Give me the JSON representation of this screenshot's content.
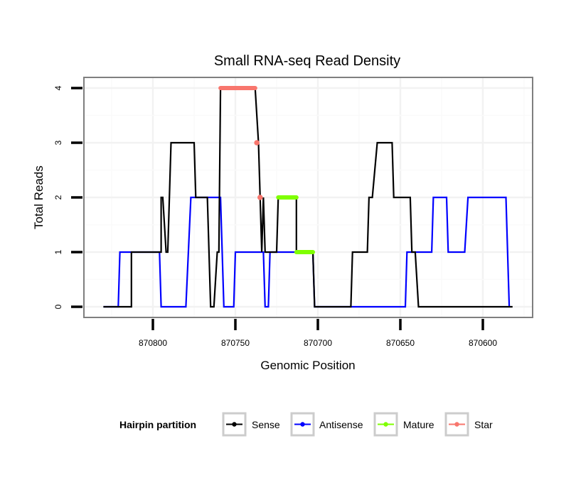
{
  "chart_data": {
    "type": "line",
    "title": "Small RNA-seq Read Density",
    "xlabel": "Genomic Position",
    "ylabel": "Total Reads",
    "x_reversed": true,
    "xlim": [
      870830,
      870560
    ],
    "ylim": [
      -0.2,
      4.2
    ],
    "x_ticks": [
      870800,
      870750,
      870700,
      870650,
      870600
    ],
    "x_tick_labels": [
      "870800",
      "870750",
      "870700",
      "870650",
      "870600"
    ],
    "y_ticks": [
      0,
      1,
      2,
      3,
      4
    ],
    "y_tick_labels": [
      "0",
      "1",
      "2",
      "3",
      "4"
    ],
    "grid": true,
    "legend": {
      "title": "Hairpin partition",
      "position": "bottom",
      "entries": [
        "Sense",
        "Antisense",
        "Mature",
        "Star"
      ]
    },
    "series": [
      {
        "name": "Sense",
        "color": "#000000",
        "points": [
          [
            870830,
            0
          ],
          [
            870813,
            0
          ],
          [
            870813,
            1
          ],
          [
            870795,
            1
          ],
          [
            870795,
            2
          ],
          [
            870794,
            2
          ],
          [
            870792,
            1
          ],
          [
            870791,
            1
          ],
          [
            870789,
            3
          ],
          [
            870775,
            3
          ],
          [
            870774,
            2
          ],
          [
            870767,
            2
          ],
          [
            870766,
            1
          ],
          [
            870765,
            0
          ],
          [
            870763,
            0
          ],
          [
            870761,
            1
          ],
          [
            870760,
            1
          ],
          [
            870759,
            4
          ],
          [
            870738,
            4
          ],
          [
            870736,
            3
          ],
          [
            870735,
            2
          ],
          [
            870734,
            1
          ],
          [
            870733,
            2
          ],
          [
            870732,
            1
          ],
          [
            870725,
            1
          ],
          [
            870724,
            2
          ],
          [
            870713,
            2
          ],
          [
            870713,
            1
          ],
          [
            870703,
            1
          ],
          [
            870702,
            0
          ],
          [
            870680,
            0
          ],
          [
            870679,
            1
          ],
          [
            870670,
            1
          ],
          [
            870669,
            2
          ],
          [
            870667,
            2
          ],
          [
            870664,
            3
          ],
          [
            870655,
            3
          ],
          [
            870654,
            2
          ],
          [
            870644,
            2
          ],
          [
            870643,
            1
          ],
          [
            870641,
            1
          ],
          [
            870639,
            0
          ],
          [
            870582,
            0
          ]
        ]
      },
      {
        "name": "Antisense",
        "color": "#0000ff",
        "points": [
          [
            870830,
            0
          ],
          [
            870821,
            0
          ],
          [
            870820,
            1
          ],
          [
            870796,
            1
          ],
          [
            870795,
            0
          ],
          [
            870780,
            0
          ],
          [
            870777,
            2
          ],
          [
            870759,
            2
          ],
          [
            870757,
            0
          ],
          [
            870751,
            0
          ],
          [
            870750,
            1
          ],
          [
            870733,
            1
          ],
          [
            870732,
            0
          ],
          [
            870730,
            0
          ],
          [
            870729,
            1
          ],
          [
            870703,
            1
          ],
          [
            870702,
            0
          ],
          [
            870647,
            0
          ],
          [
            870646,
            1
          ],
          [
            870631,
            1
          ],
          [
            870630,
            2
          ],
          [
            870622,
            2
          ],
          [
            870621,
            1
          ],
          [
            870611,
            1
          ],
          [
            870609,
            2
          ],
          [
            870586,
            2
          ],
          [
            870584,
            0
          ]
        ]
      },
      {
        "name": "Mature",
        "color": "#7fff00",
        "points": [
          [
            870724,
            2
          ],
          [
            870713,
            2
          ],
          [
            870713,
            1
          ],
          [
            870703,
            1
          ]
        ],
        "segments": [
          [
            [
              870724,
              2
            ],
            [
              870713,
              2
            ]
          ],
          [
            [
              870713,
              1
            ],
            [
              870703,
              1
            ]
          ]
        ]
      },
      {
        "name": "Star",
        "color": "#f8766d",
        "points": [
          [
            870759,
            4
          ],
          [
            870738,
            4
          ],
          [
            870737,
            3
          ],
          [
            870735,
            2
          ]
        ],
        "segments": [
          [
            [
              870759,
              4
            ],
            [
              870738,
              4
            ]
          ]
        ],
        "dots": [
          [
            870737,
            3
          ],
          [
            870735,
            2
          ]
        ]
      }
    ]
  }
}
